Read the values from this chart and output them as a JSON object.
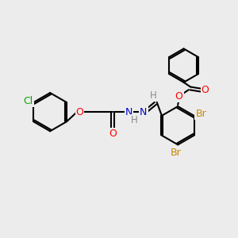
{
  "bg_color": "#ececec",
  "bond_color": "#000000",
  "bond_width": 1.5,
  "atom_colors": {
    "O": "#ff0000",
    "N": "#0000cc",
    "Br": "#cc8800",
    "Cl": "#00aa00",
    "H": "#888888",
    "C": "#000000"
  },
  "font_size": 8.5
}
